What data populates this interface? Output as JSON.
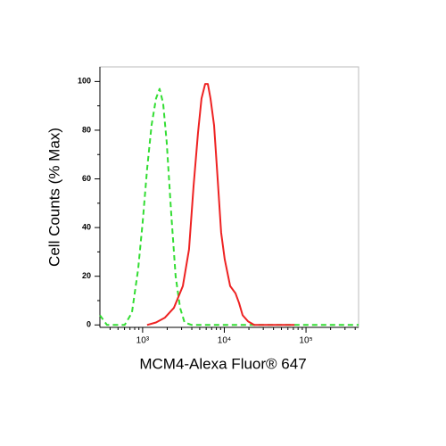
{
  "chart_data": {
    "type": "line",
    "xlabel": "MCM4-Alexa Fluor® 647",
    "ylabel": "Cell Counts (% Max)",
    "xscale": "log",
    "xlim": [
      300,
      440000
    ],
    "ylim": [
      -1,
      106
    ],
    "xticks": [
      {
        "value": 1000,
        "label": "10³"
      },
      {
        "value": 10000,
        "label": "10⁴"
      },
      {
        "value": 100000,
        "label": "10⁵"
      }
    ],
    "xminorticks": [
      400,
      500,
      600,
      700,
      800,
      900,
      2000,
      3000,
      4000,
      5000,
      6000,
      7000,
      8000,
      9000,
      20000,
      30000,
      40000,
      50000,
      60000,
      70000,
      80000,
      90000,
      200000,
      300000,
      400000
    ],
    "yticks": [
      0,
      20,
      40,
      60,
      80,
      100
    ],
    "yminorticks": [
      10,
      30,
      50,
      70,
      90
    ],
    "series": [
      {
        "color": "#33dd33",
        "dashed": true,
        "x": [
          300,
          366,
          604,
          740,
          881,
          1000,
          1134,
          1286,
          1458,
          1613,
          1784,
          1973,
          2237,
          2537,
          2877,
          3263,
          3991,
          12400,
          33800,
          440000
        ],
        "values": [
          4,
          0,
          0,
          5,
          23,
          42,
          64,
          82,
          93,
          97,
          91,
          75,
          46,
          20,
          7,
          1,
          0,
          0,
          0,
          0
        ]
      },
      {
        "color": "#ee2222",
        "dashed": false,
        "x": [
          1134,
          1458,
          1875,
          2414,
          3106,
          3700,
          4200,
          4764,
          5263,
          5821,
          6280,
          6770,
          7485,
          8276,
          9150,
          10100,
          11770,
          13700,
          15140,
          16740,
          19500,
          23200,
          72100
        ],
        "values": [
          0,
          1,
          3,
          7,
          16,
          31,
          57,
          79,
          93,
          99,
          99,
          93,
          82,
          60,
          38,
          27,
          16,
          13,
          9,
          4,
          1.5,
          0,
          0
        ]
      }
    ]
  }
}
